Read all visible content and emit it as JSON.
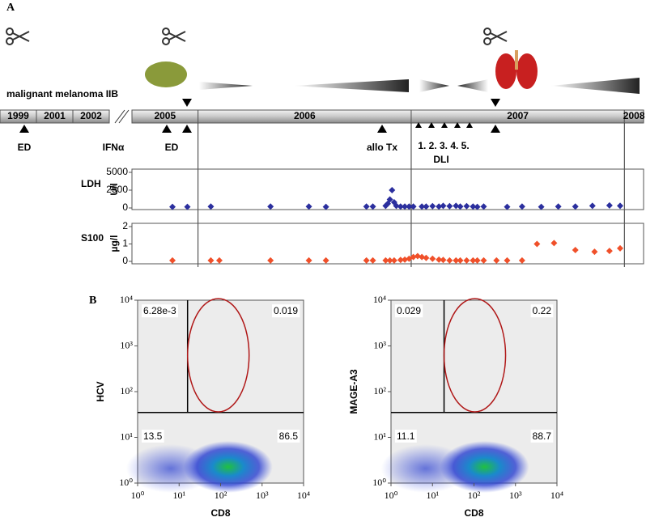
{
  "panel_labels": [
    "A",
    "B"
  ],
  "timeline": {
    "title": "malignant melanoma IIB",
    "early_years": [
      "1999",
      "2001",
      "2002"
    ],
    "years": [
      "2005",
      "2006",
      "2007",
      "2008"
    ],
    "xlim": [
      2005.69,
      2008.09
    ],
    "xticks": [
      2006,
      2007,
      2008
    ],
    "events": {
      "ed_1": "ED",
      "ifn": "IFNα",
      "ed_2": "ED",
      "allo": "allo Tx",
      "dli_numbers": "1. 2. 3. 4. 5.",
      "dli": "DLI"
    }
  },
  "chart_data": [
    {
      "type": "scatter",
      "title": "LDH",
      "y_label": "U/l",
      "color": "#2b2f9e",
      "xlim": [
        2005.69,
        2008.09
      ],
      "xticks": [
        2006,
        2007,
        2008
      ],
      "ylim": [
        0,
        5000
      ],
      "yticks": [
        0,
        2500,
        5000
      ],
      "x": [
        2005.88,
        2005.95,
        2006.06,
        2006.34,
        2006.52,
        2006.6,
        2006.79,
        2006.82,
        2006.88,
        2006.89,
        2006.9,
        2006.91,
        2006.92,
        2006.93,
        2006.95,
        2006.97,
        2006.99,
        2007.01,
        2007.05,
        2007.07,
        2007.1,
        2007.13,
        2007.15,
        2007.18,
        2007.21,
        2007.23,
        2007.26,
        2007.29,
        2007.31,
        2007.34,
        2007.45,
        2007.52,
        2007.61,
        2007.69,
        2007.77,
        2007.85,
        2007.93,
        2007.98
      ],
      "values": [
        150,
        150,
        200,
        200,
        200,
        150,
        200,
        200,
        300,
        600,
        1200,
        2500,
        800,
        300,
        200,
        200,
        200,
        200,
        200,
        200,
        250,
        200,
        300,
        250,
        300,
        200,
        250,
        200,
        150,
        200,
        150,
        200,
        150,
        200,
        200,
        300,
        350,
        300
      ]
    },
    {
      "type": "scatter",
      "title": "S100",
      "y_label": "µg/l",
      "color": "#f0502a",
      "xlim": [
        2005.69,
        2008.09
      ],
      "xticks": [
        2006,
        2007,
        2008
      ],
      "ylim": [
        0,
        2
      ],
      "yticks": [
        0,
        1,
        2
      ],
      "x": [
        2005.88,
        2006.06,
        2006.1,
        2006.34,
        2006.52,
        2006.6,
        2006.79,
        2006.82,
        2006.88,
        2006.9,
        2006.92,
        2006.95,
        2006.97,
        2006.99,
        2007.01,
        2007.03,
        2007.05,
        2007.07,
        2007.1,
        2007.13,
        2007.15,
        2007.18,
        2007.21,
        2007.23,
        2007.26,
        2007.29,
        2007.31,
        2007.34,
        2007.4,
        2007.45,
        2007.52,
        2007.59,
        2007.67,
        2007.77,
        2007.86,
        2007.93,
        2007.98
      ],
      "values": [
        0.05,
        0.05,
        0.05,
        0.05,
        0.05,
        0.05,
        0.05,
        0.05,
        0.05,
        0.05,
        0.05,
        0.08,
        0.1,
        0.15,
        0.25,
        0.3,
        0.25,
        0.2,
        0.15,
        0.1,
        0.08,
        0.05,
        0.05,
        0.05,
        0.05,
        0.05,
        0.05,
        0.05,
        0.05,
        0.05,
        0.05,
        1.0,
        1.05,
        0.65,
        0.55,
        0.6,
        0.75
      ]
    },
    {
      "type": "flow",
      "x_label": "CD8",
      "y_label": "HCV",
      "log_scale": true,
      "xlim": [
        1,
        10000
      ],
      "ylim": [
        1,
        10000
      ],
      "xticks": [
        {
          "value": 1,
          "label": "10⁰"
        },
        {
          "value": 10,
          "label": "10¹"
        },
        {
          "value": 100,
          "label": "10²"
        },
        {
          "value": 1000,
          "label": "10³"
        },
        {
          "value": 10000,
          "label": "10⁴"
        }
      ],
      "yticks": [
        {
          "value": 1,
          "label": "10⁰"
        },
        {
          "value": 10,
          "label": "10¹"
        },
        {
          "value": 100,
          "label": "10²"
        },
        {
          "value": 1000,
          "label": "10³"
        },
        {
          "value": 10000,
          "label": "10⁴"
        }
      ],
      "gate_x": 16,
      "gate_y": 35,
      "quadrants": [
        "6.28e-3",
        "0.019",
        "13.5",
        "86.5"
      ]
    },
    {
      "type": "flow",
      "x_label": "CD8",
      "y_label": "MAGE-A3",
      "log_scale": true,
      "xlim": [
        1,
        10000
      ],
      "ylim": [
        1,
        10000
      ],
      "xticks": [
        {
          "value": 1,
          "label": "10⁰"
        },
        {
          "value": 10,
          "label": "10¹"
        },
        {
          "value": 100,
          "label": "10²"
        },
        {
          "value": 1000,
          "label": "10³"
        },
        {
          "value": 10000,
          "label": "10⁴"
        }
      ],
      "yticks": [
        {
          "value": 1,
          "label": "10⁰"
        },
        {
          "value": 10,
          "label": "10¹"
        },
        {
          "value": 100,
          "label": "10²"
        },
        {
          "value": 1000,
          "label": "10³"
        },
        {
          "value": 10000,
          "label": "10⁴"
        }
      ],
      "gate_x": 19,
      "gate_y": 35,
      "quadrants": [
        "0.029",
        "0.22",
        "11.1",
        "88.7"
      ]
    }
  ]
}
